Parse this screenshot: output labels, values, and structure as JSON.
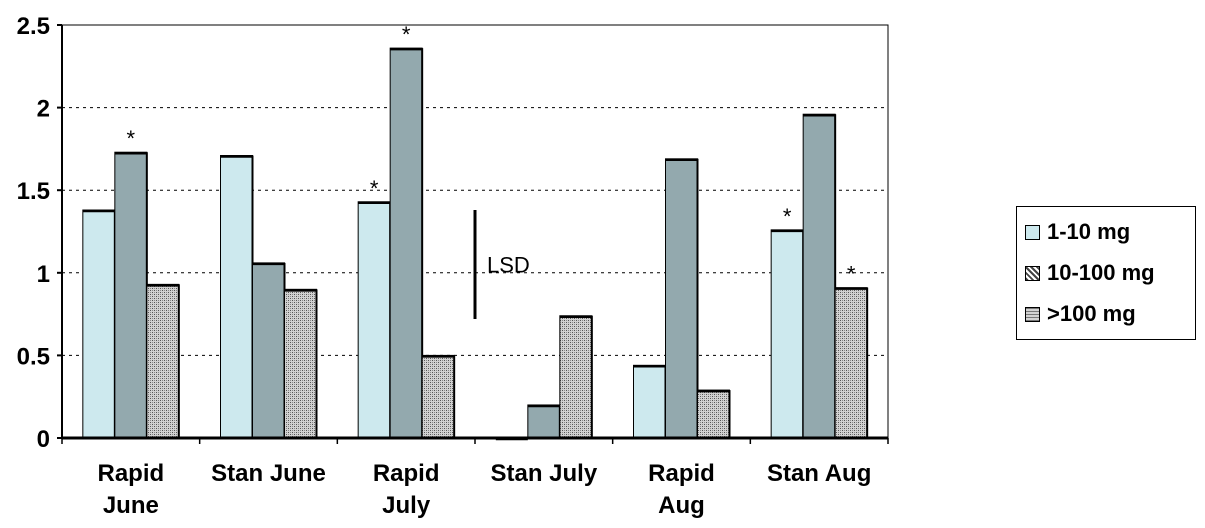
{
  "chart_data": {
    "type": "bar",
    "categories": [
      [
        "Rapid",
        "June"
      ],
      [
        "Stan June"
      ],
      [
        "Rapid",
        "July"
      ],
      [
        "Stan July"
      ],
      [
        "Rapid",
        "Aug"
      ],
      [
        "Stan Aug"
      ]
    ],
    "series": [
      {
        "name": "1-10 mg",
        "color": "#cde9ee",
        "values": [
          1.38,
          1.71,
          1.43,
          0.0,
          0.44,
          1.26
        ]
      },
      {
        "name": "10-100 mg",
        "color": "#93a9ae",
        "values": [
          1.73,
          1.06,
          2.36,
          0.2,
          1.69,
          1.96
        ]
      },
      {
        "name": ">100 mg",
        "color": "#8a8a8a",
        "values": [
          0.93,
          0.9,
          0.5,
          0.74,
          0.29,
          0.91
        ]
      }
    ],
    "significance_markers": [
      {
        "category": 0,
        "series": 1,
        "text": "*"
      },
      {
        "category": 2,
        "series": 0,
        "text": "*"
      },
      {
        "category": 2,
        "series": 1,
        "text": "*"
      },
      {
        "category": 5,
        "series": 0,
        "text": "*"
      },
      {
        "category": 5,
        "series": 2,
        "text": "*"
      }
    ],
    "annotation": {
      "text": "LSD",
      "from": 0.72,
      "to": 1.38
    },
    "y_ticks": [
      "0",
      "0.5",
      "1",
      "1.5",
      "2",
      "2.5"
    ],
    "ylim": [
      0,
      2.5
    ],
    "grid": "horizontal dashed",
    "legend_position": "right"
  }
}
